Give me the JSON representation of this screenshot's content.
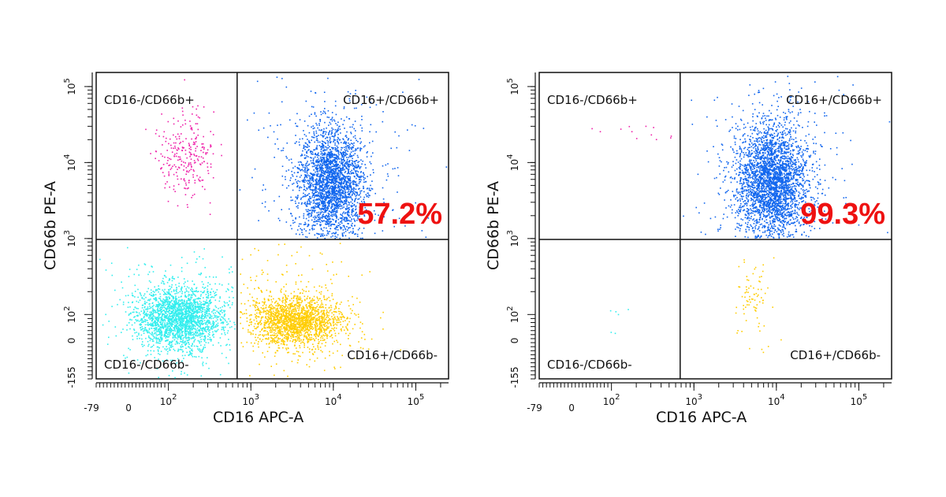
{
  "chart_data": [
    {
      "type": "scatter",
      "xlabel": "CD16 APC-A",
      "ylabel": "CD66b PE-A",
      "x_tick_labels": [
        "-79",
        "0",
        "10^2",
        "10^3",
        "10^4",
        "10^5"
      ],
      "y_tick_labels": [
        "-155",
        "0",
        "10^2",
        "10^3",
        "10^4",
        "10^5"
      ],
      "quadrants": {
        "upper_left": "CD16-/CD66b+",
        "upper_right": "CD16+/CD66b+",
        "lower_left": "CD16-/CD66b-",
        "lower_right": "CD16+/CD66b-"
      },
      "highlight_value": "57.2%",
      "highlight_color": "#ee1111",
      "clusters": [
        {
          "quadrant": "upper_right",
          "color": "#1166ee",
          "relative_density": 1.0,
          "x_center": 6500,
          "y_center": 6500
        },
        {
          "quadrant": "upper_left",
          "color": "#ee22aa",
          "relative_density": 0.06,
          "x_center": 170,
          "y_center": 15000
        },
        {
          "quadrant": "lower_left",
          "color": "#33eeee",
          "relative_density": 0.75,
          "x_center": 120,
          "y_center": 60
        },
        {
          "quadrant": "lower_right",
          "color": "#ffcc00",
          "relative_density": 0.6,
          "x_center": 2600,
          "y_center": 55
        }
      ]
    },
    {
      "type": "scatter",
      "xlabel": "CD16 APC-A",
      "ylabel": "CD66b PE-A",
      "x_tick_labels": [
        "-79",
        "0",
        "10^2",
        "10^3",
        "10^4",
        "10^5"
      ],
      "y_tick_labels": [
        "-155",
        "0",
        "10^2",
        "10^3",
        "10^4",
        "10^5"
      ],
      "quadrants": {
        "upper_left": "CD16-/CD66b+",
        "upper_right": "CD16+/CD66b+",
        "lower_left": "CD16-/CD66b-",
        "lower_right": "CD16+/CD66b-"
      },
      "highlight_value": "99.3%",
      "highlight_color": "#ee1111",
      "clusters": [
        {
          "quadrant": "upper_right",
          "color": "#1166ee",
          "relative_density": 1.0,
          "x_center": 7500,
          "y_center": 7500
        },
        {
          "quadrant": "upper_left",
          "color": "#ee22aa",
          "relative_density": 0.01,
          "x_center": 250,
          "y_center": 25000
        },
        {
          "quadrant": "lower_left",
          "color": "#33eeee",
          "relative_density": 0.003,
          "x_center": 200,
          "y_center": 100
        },
        {
          "quadrant": "lower_right",
          "color": "#ffcc00",
          "relative_density": 0.03,
          "x_center": 4500,
          "y_center": 150
        }
      ]
    }
  ]
}
